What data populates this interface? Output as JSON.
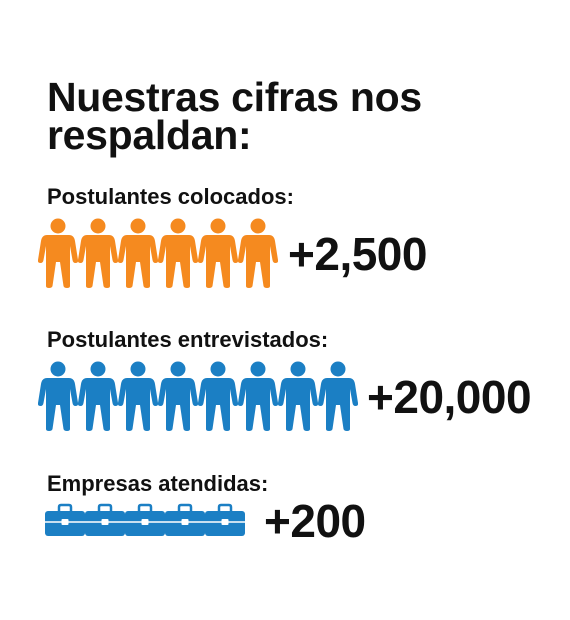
{
  "title": {
    "line1": "Nuestras cifras nos",
    "line2": "respaldan:"
  },
  "stats": [
    {
      "label": "Postulantes colocados:",
      "value": "+2,500",
      "icon": "person-icon",
      "icon_count": 6,
      "color": "#f58a1f"
    },
    {
      "label": "Postulantes entrevistados:",
      "value": "+20,000",
      "icon": "person-icon",
      "icon_count": 8,
      "color": "#1b7fc4"
    },
    {
      "label": "Empresas atendidas:",
      "value": "+200",
      "icon": "briefcase-icon",
      "icon_count": 5,
      "color": "#1b7fc4"
    }
  ]
}
